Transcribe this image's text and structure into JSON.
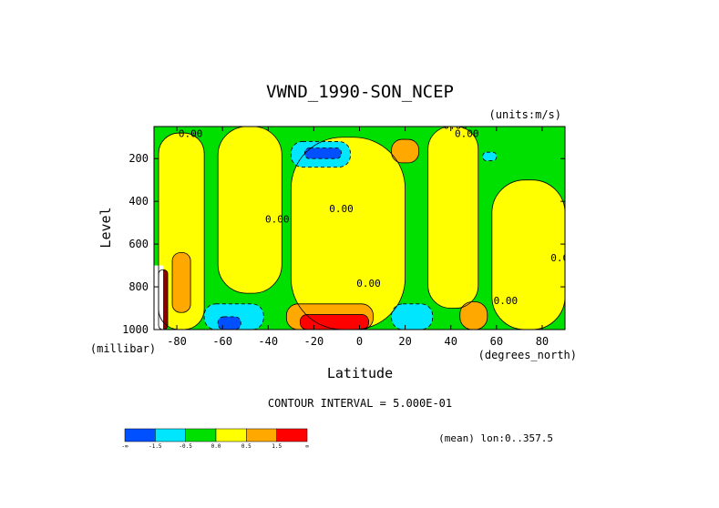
{
  "chart_data": {
    "type": "contour",
    "title": "VWND_1990-SON_NCEP",
    "units_label": "(units:m/s)",
    "xlabel": "Latitude",
    "x_units": "(degrees_north)",
    "ylabel": "Level",
    "y_units": "(millibar)",
    "xlim": [
      -90,
      90
    ],
    "ylim": [
      1000,
      50
    ],
    "x_ticks": [
      -80,
      -60,
      -40,
      -20,
      0,
      20,
      40,
      60,
      80
    ],
    "y_ticks": [
      200,
      400,
      600,
      800,
      1000
    ],
    "contour_interval_text": "CONTOUR INTERVAL = 5.000E-01",
    "mean_text": "(mean) lon:0..357.5",
    "contour_labels": [
      "0.00"
    ],
    "colorbar": {
      "colors": [
        "#0050ff",
        "#00e6ff",
        "#00e000",
        "#ffff00",
        "#ffa800",
        "#ff0000"
      ],
      "tick_labels": [
        "-∞",
        "-1.5",
        "-0.5",
        "0.0",
        "0.5",
        "1.5",
        "∞"
      ],
      "level_bounds": [
        -1.5,
        -0.5,
        0.0,
        0.5,
        1.5
      ]
    },
    "regions": [
      {
        "level": 0,
        "lat": [
          -90,
          90
        ],
        "p": [
          50,
          1000
        ],
        "label": "background"
      },
      {
        "level": 1,
        "lat": [
          -88,
          -68
        ],
        "p": [
          80,
          1000
        ],
        "label": "yellow south"
      },
      {
        "level": 1,
        "lat": [
          -62,
          -34
        ],
        "p": [
          50,
          830
        ],
        "label": "yellow south mid"
      },
      {
        "level": 1,
        "lat": [
          -30,
          20
        ],
        "p": [
          100,
          1000
        ],
        "label": "yellow central"
      },
      {
        "level": 1,
        "lat": [
          30,
          52
        ],
        "p": [
          50,
          900
        ],
        "label": "yellow north"
      },
      {
        "level": 1,
        "lat": [
          58,
          90
        ],
        "p": [
          300,
          1000
        ],
        "label": "yellow far north"
      },
      {
        "level": 2,
        "lat": [
          -82,
          -74
        ],
        "p": [
          640,
          920
        ],
        "label": "orange"
      },
      {
        "level": 2,
        "lat": [
          -32,
          6
        ],
        "p": [
          880,
          1000
        ],
        "label": "orange lower"
      },
      {
        "level": 2,
        "lat": [
          14,
          26
        ],
        "p": [
          110,
          220
        ],
        "label": "orange upper"
      },
      {
        "level": 2,
        "lat": [
          44,
          56
        ],
        "p": [
          870,
          1000
        ],
        "label": "orange north"
      },
      {
        "level": 3,
        "lat": [
          -26,
          4
        ],
        "p": [
          930,
          1000
        ],
        "label": "red"
      },
      {
        "level": 3,
        "lat": [
          -88,
          -84
        ],
        "p": [
          720,
          1000
        ],
        "label": "dark red"
      },
      {
        "level": -1,
        "lat": [
          -30,
          -4
        ],
        "p": [
          120,
          240
        ],
        "label": "cyan"
      },
      {
        "level": -1,
        "lat": [
          -68,
          -42
        ],
        "p": [
          880,
          1000
        ],
        "label": "cyan south"
      },
      {
        "level": -1,
        "lat": [
          14,
          32
        ],
        "p": [
          880,
          1000
        ],
        "label": "cyan north"
      },
      {
        "level": -1,
        "lat": [
          54,
          60
        ],
        "p": [
          170,
          210
        ],
        "label": "cyan small"
      },
      {
        "level": -2,
        "lat": [
          -24,
          -8
        ],
        "p": [
          150,
          200
        ],
        "label": "blue"
      },
      {
        "level": -2,
        "lat": [
          -62,
          -52
        ],
        "p": [
          940,
          1000
        ],
        "label": "blue south"
      }
    ]
  }
}
